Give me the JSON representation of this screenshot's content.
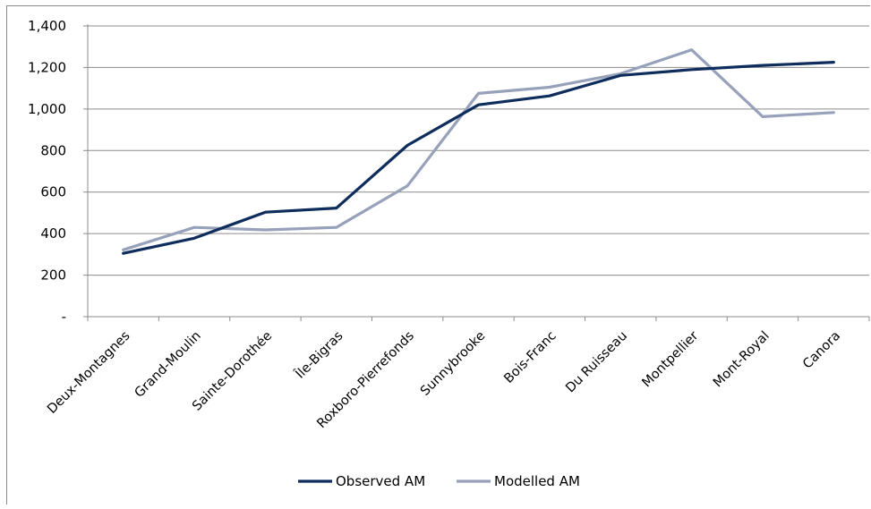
{
  "chart_data": {
    "type": "line",
    "categories": [
      "Deux-Montagnes",
      "Grand-Moulin",
      "Sainte-Dorothée",
      "Île-Bigras",
      "Roxboro-Pierrefonds",
      "Sunnybrooke",
      "Bois-Franc",
      "Du Ruisseau",
      "Montpellier",
      "Mont-Royal",
      "Canora"
    ],
    "series": [
      {
        "name": "Observed AM",
        "color": "#0e2c5c",
        "values": [
          305,
          378,
          503,
          523,
          825,
          1020,
          1063,
          1162,
          1190,
          1210,
          1225
        ]
      },
      {
        "name": "Modelled AM",
        "color": "#97a1ba",
        "values": [
          322,
          430,
          418,
          430,
          630,
          1075,
          1105,
          1170,
          1285,
          963,
          983
        ]
      }
    ],
    "yticks": [
      "-",
      "200",
      "400",
      "600",
      "800",
      "1,000",
      "1,200",
      "1,400"
    ],
    "ylim": [
      0,
      1400
    ],
    "grid": true,
    "legend_position": "bottom"
  }
}
